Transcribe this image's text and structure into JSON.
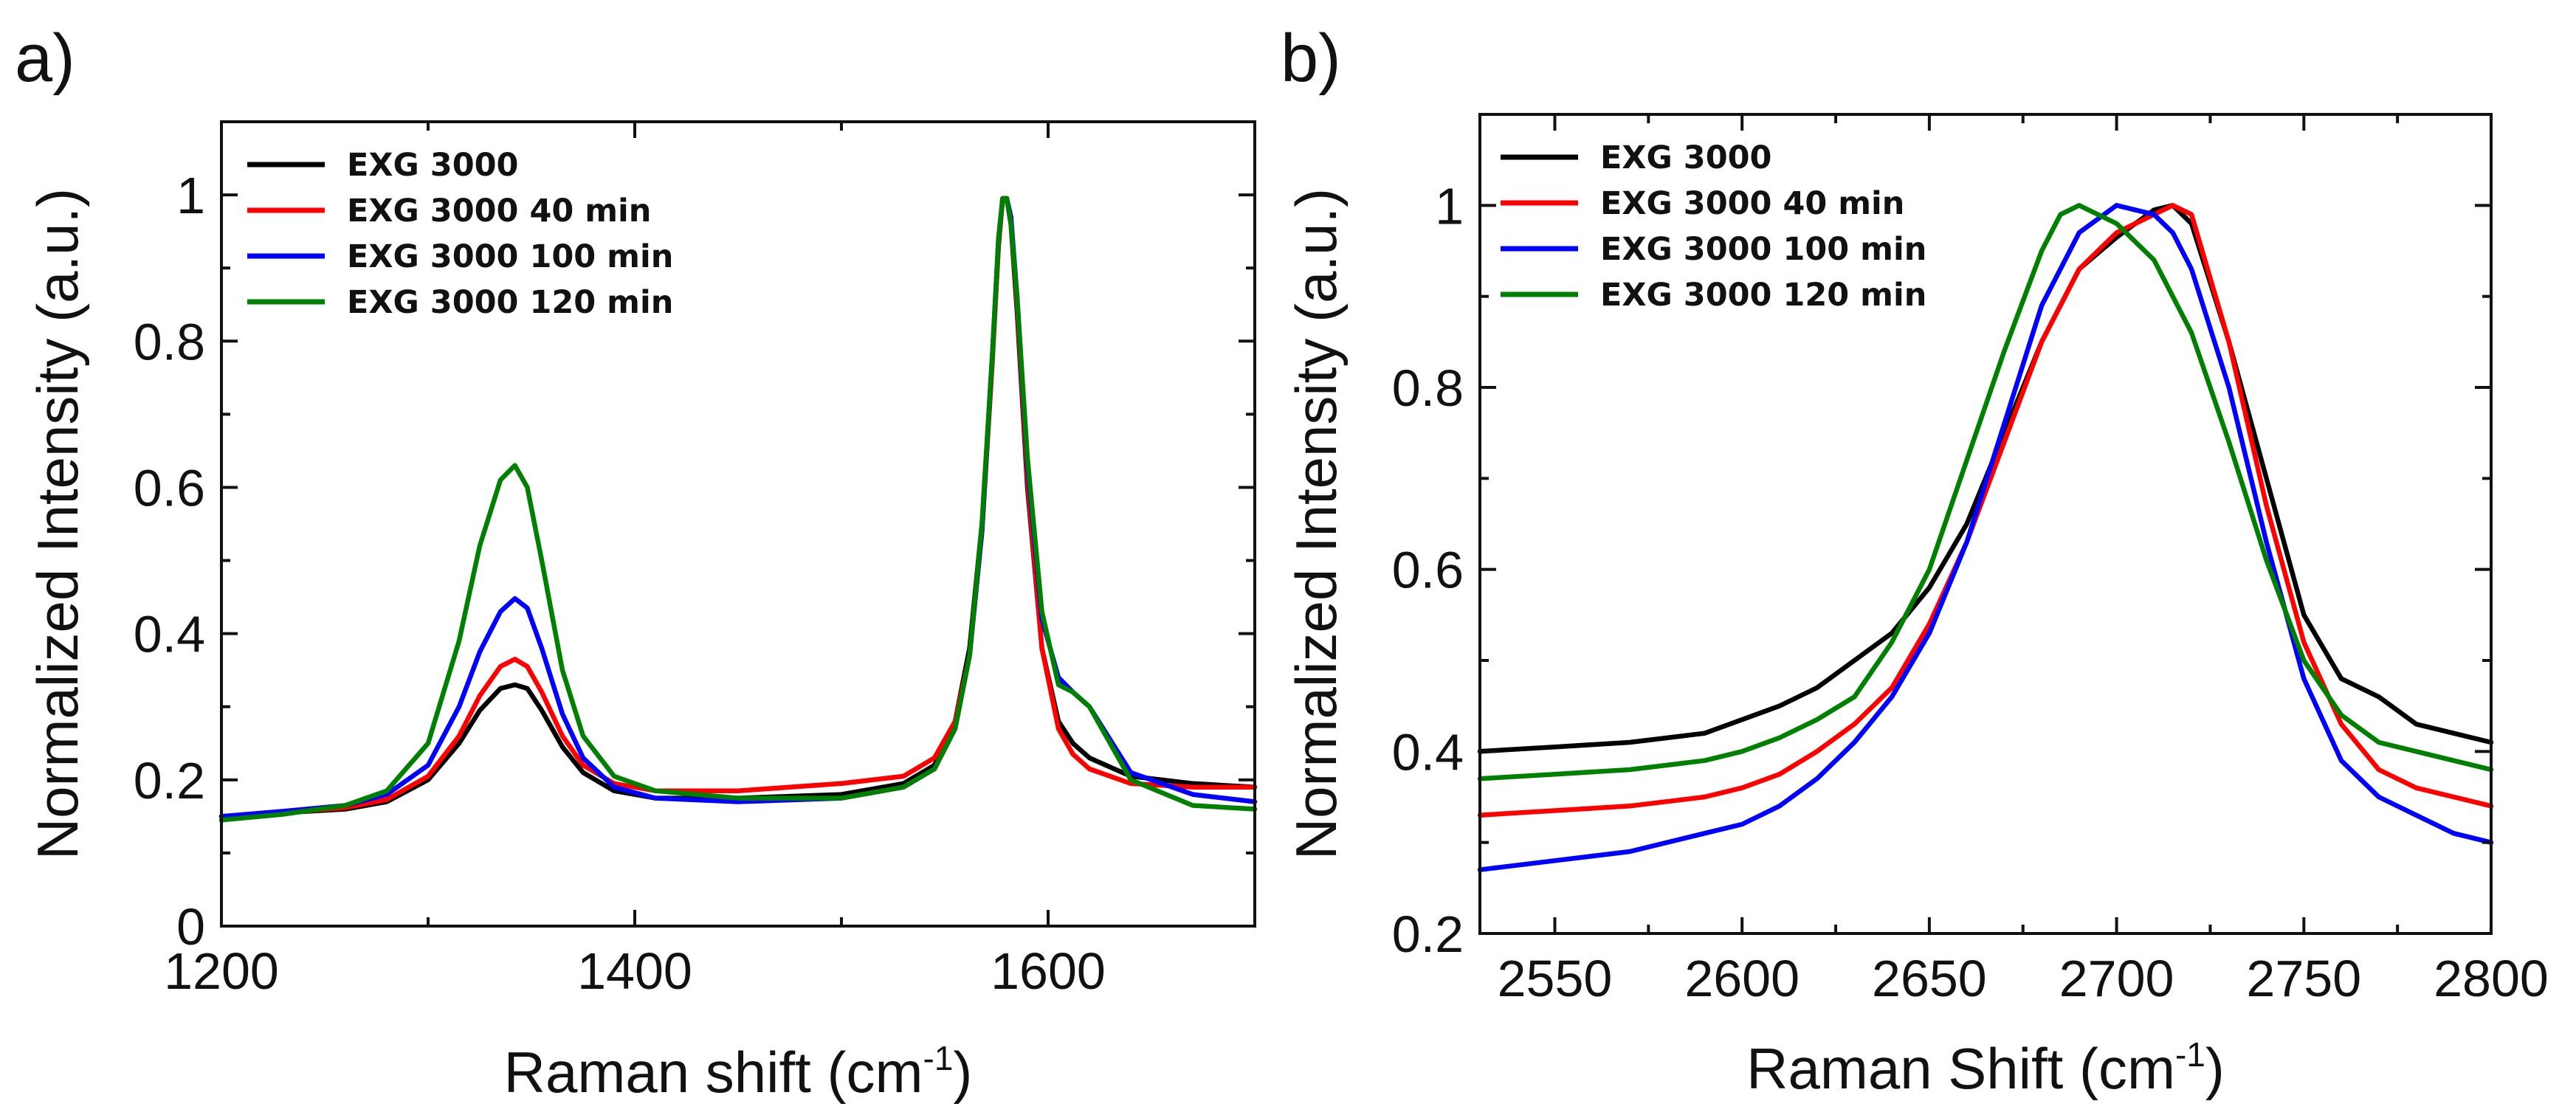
{
  "chart_data": [
    {
      "panel_label": "a)",
      "type": "line",
      "xlabel": "Raman shift",
      "xlabel_unit_base": "(cm",
      "xlabel_unit_exp": "-1",
      "xlabel_unit_close": ")",
      "ylabel": "Normalized Intensity (a.u.)",
      "xlim": [
        1200,
        1700
      ],
      "ylim": [
        0,
        1.1
      ],
      "xticks": [
        1200,
        1400,
        1600
      ],
      "xtick_labels": [
        "1200",
        "1400",
        "1600"
      ],
      "yticks": [
        0,
        0.2,
        0.4,
        0.6,
        0.8,
        1
      ],
      "ytick_labels": [
        "0",
        "0.2",
        "0.4",
        "0.6",
        "0.8",
        "1"
      ],
      "legend_position": "top-left",
      "grid": false,
      "series": [
        {
          "name": "EXG 3000",
          "color": "#000000",
          "x": [
            1200,
            1230,
            1260,
            1280,
            1300,
            1315,
            1325,
            1335,
            1342,
            1348,
            1355,
            1365,
            1375,
            1390,
            1410,
            1450,
            1500,
            1530,
            1545,
            1555,
            1562,
            1568,
            1573,
            1576,
            1578,
            1580,
            1582,
            1585,
            1590,
            1597,
            1605,
            1612,
            1620,
            1640,
            1670,
            1700
          ],
          "y": [
            0.15,
            0.155,
            0.16,
            0.17,
            0.2,
            0.25,
            0.295,
            0.325,
            0.33,
            0.325,
            0.295,
            0.245,
            0.21,
            0.185,
            0.175,
            0.175,
            0.18,
            0.195,
            0.22,
            0.28,
            0.38,
            0.55,
            0.78,
            0.93,
            0.995,
            0.995,
            0.96,
            0.84,
            0.6,
            0.38,
            0.28,
            0.25,
            0.23,
            0.205,
            0.195,
            0.19
          ]
        },
        {
          "name": "EXG 3000 40 min",
          "color": "#ff0000",
          "x": [
            1200,
            1230,
            1260,
            1280,
            1300,
            1315,
            1325,
            1335,
            1342,
            1348,
            1355,
            1365,
            1375,
            1390,
            1410,
            1450,
            1500,
            1530,
            1545,
            1555,
            1562,
            1568,
            1573,
            1576,
            1578,
            1580,
            1582,
            1585,
            1590,
            1597,
            1605,
            1612,
            1620,
            1640,
            1670,
            1700
          ],
          "y": [
            0.15,
            0.155,
            0.162,
            0.173,
            0.205,
            0.26,
            0.315,
            0.355,
            0.365,
            0.355,
            0.32,
            0.26,
            0.22,
            0.195,
            0.185,
            0.185,
            0.195,
            0.205,
            0.23,
            0.28,
            0.37,
            0.54,
            0.77,
            0.93,
            0.995,
            0.995,
            0.965,
            0.85,
            0.61,
            0.38,
            0.27,
            0.235,
            0.215,
            0.195,
            0.19,
            0.19
          ]
        },
        {
          "name": "EXG 3000 100 min",
          "color": "#0000ff",
          "x": [
            1200,
            1230,
            1260,
            1280,
            1300,
            1315,
            1325,
            1335,
            1342,
            1348,
            1355,
            1365,
            1375,
            1390,
            1410,
            1450,
            1500,
            1530,
            1545,
            1555,
            1562,
            1568,
            1573,
            1576,
            1578,
            1580,
            1582,
            1585,
            1590,
            1597,
            1605,
            1612,
            1620,
            1640,
            1670,
            1700
          ],
          "y": [
            0.15,
            0.157,
            0.165,
            0.18,
            0.22,
            0.3,
            0.375,
            0.43,
            0.448,
            0.435,
            0.38,
            0.29,
            0.23,
            0.19,
            0.175,
            0.17,
            0.175,
            0.19,
            0.215,
            0.27,
            0.37,
            0.54,
            0.78,
            0.94,
            0.995,
            0.995,
            0.97,
            0.86,
            0.63,
            0.42,
            0.34,
            0.32,
            0.3,
            0.21,
            0.18,
            0.17
          ]
        },
        {
          "name": "EXG 3000 120 min",
          "color": "#008000",
          "x": [
            1200,
            1230,
            1260,
            1280,
            1300,
            1315,
            1325,
            1335,
            1342,
            1348,
            1355,
            1365,
            1375,
            1390,
            1410,
            1450,
            1500,
            1530,
            1545,
            1555,
            1562,
            1568,
            1573,
            1576,
            1578,
            1580,
            1582,
            1585,
            1590,
            1597,
            1605,
            1612,
            1620,
            1640,
            1670,
            1700
          ],
          "y": [
            0.145,
            0.153,
            0.165,
            0.185,
            0.25,
            0.39,
            0.52,
            0.61,
            0.63,
            0.6,
            0.5,
            0.35,
            0.26,
            0.205,
            0.185,
            0.175,
            0.175,
            0.19,
            0.215,
            0.27,
            0.37,
            0.55,
            0.78,
            0.94,
            0.995,
            0.995,
            0.96,
            0.86,
            0.64,
            0.43,
            0.33,
            0.32,
            0.3,
            0.2,
            0.165,
            0.16
          ]
        }
      ]
    },
    {
      "panel_label": "b)",
      "type": "line",
      "xlabel": "Raman Shift",
      "xlabel_unit_base": "(cm",
      "xlabel_unit_exp": "-1",
      "xlabel_unit_close": ")",
      "ylabel": "Normalized Intensity (a.u.)",
      "xlim": [
        2530,
        2800
      ],
      "ylim": [
        0.2,
        1.1
      ],
      "xticks": [
        2550,
        2600,
        2650,
        2700,
        2750,
        2800
      ],
      "xtick_labels": [
        "2550",
        "2600",
        "2650",
        "2700",
        "2750",
        "2800"
      ],
      "yticks": [
        0.2,
        0.4,
        0.6,
        0.8,
        1
      ],
      "ytick_labels": [
        "0.2",
        "0.4",
        "0.6",
        "0.8",
        "1"
      ],
      "legend_position": "top-left",
      "grid": false,
      "series": [
        {
          "name": "EXG 3000",
          "color": "#000000",
          "x": [
            2530,
            2550,
            2570,
            2590,
            2600,
            2610,
            2620,
            2630,
            2640,
            2650,
            2660,
            2670,
            2680,
            2690,
            2700,
            2710,
            2715,
            2720,
            2730,
            2740,
            2750,
            2760,
            2770,
            2780,
            2790,
            2800
          ],
          "y": [
            0.4,
            0.405,
            0.41,
            0.42,
            0.435,
            0.45,
            0.47,
            0.5,
            0.53,
            0.58,
            0.65,
            0.75,
            0.85,
            0.93,
            0.965,
            0.995,
            1.0,
            0.98,
            0.85,
            0.7,
            0.55,
            0.48,
            0.46,
            0.43,
            0.42,
            0.41
          ]
        },
        {
          "name": "EXG 3000 40 min",
          "color": "#ff0000",
          "x": [
            2530,
            2550,
            2570,
            2590,
            2600,
            2610,
            2620,
            2630,
            2640,
            2650,
            2660,
            2670,
            2680,
            2690,
            2700,
            2710,
            2715,
            2720,
            2730,
            2740,
            2750,
            2760,
            2770,
            2780,
            2790,
            2800
          ],
          "y": [
            0.33,
            0.335,
            0.34,
            0.35,
            0.36,
            0.375,
            0.4,
            0.43,
            0.47,
            0.54,
            0.63,
            0.74,
            0.85,
            0.93,
            0.97,
            0.99,
            1.0,
            0.99,
            0.85,
            0.67,
            0.52,
            0.43,
            0.38,
            0.36,
            0.35,
            0.34
          ]
        },
        {
          "name": "EXG 3000 100 min",
          "color": "#0000ff",
          "x": [
            2530,
            2550,
            2570,
            2590,
            2600,
            2610,
            2620,
            2630,
            2640,
            2650,
            2660,
            2670,
            2680,
            2690,
            2700,
            2710,
            2715,
            2720,
            2730,
            2740,
            2750,
            2760,
            2770,
            2780,
            2790,
            2800
          ],
          "y": [
            0.27,
            0.28,
            0.29,
            0.31,
            0.32,
            0.34,
            0.37,
            0.41,
            0.46,
            0.53,
            0.63,
            0.76,
            0.89,
            0.97,
            1.0,
            0.99,
            0.97,
            0.93,
            0.8,
            0.63,
            0.48,
            0.39,
            0.35,
            0.33,
            0.31,
            0.3
          ]
        },
        {
          "name": "EXG 3000 120 min",
          "color": "#008000",
          "x": [
            2530,
            2550,
            2570,
            2590,
            2600,
            2610,
            2620,
            2630,
            2640,
            2650,
            2660,
            2670,
            2680,
            2685,
            2690,
            2700,
            2710,
            2720,
            2730,
            2740,
            2750,
            2760,
            2770,
            2780,
            2790,
            2800
          ],
          "y": [
            0.37,
            0.375,
            0.38,
            0.39,
            0.4,
            0.415,
            0.435,
            0.46,
            0.52,
            0.6,
            0.72,
            0.84,
            0.95,
            0.99,
            1.0,
            0.98,
            0.94,
            0.86,
            0.74,
            0.61,
            0.5,
            0.44,
            0.41,
            0.4,
            0.39,
            0.38
          ]
        }
      ]
    }
  ]
}
